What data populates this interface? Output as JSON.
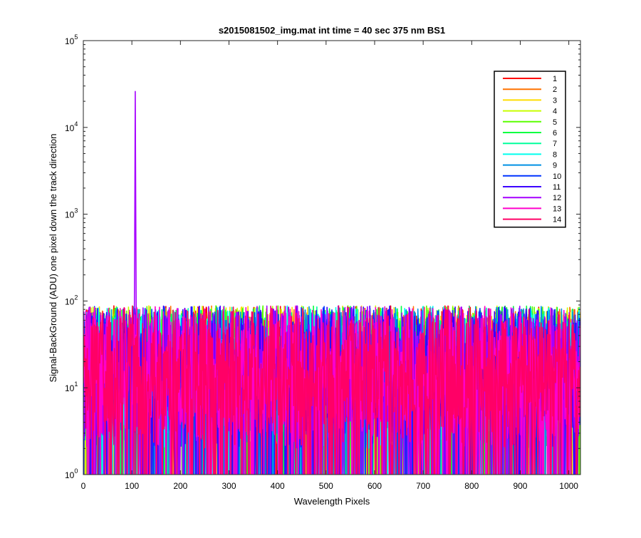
{
  "chart_data": {
    "type": "line",
    "title": "s2015081502_img.mat int time = 40 sec  375 nm BS1",
    "xlabel": "Wavelength Pixels",
    "ylabel": "Signal-BackGround (ADU) one pixel down the track direction",
    "xlim": [
      0,
      1024
    ],
    "ylim": [
      1,
      100000
    ],
    "yscale": "log",
    "xticks": [
      "0",
      "100",
      "200",
      "300",
      "400",
      "500",
      "600",
      "700",
      "800",
      "900",
      "1000"
    ],
    "yticks": [
      {
        "base": "10",
        "exp": "0"
      },
      {
        "base": "10",
        "exp": "1"
      },
      {
        "base": "10",
        "exp": "2"
      },
      {
        "base": "10",
        "exp": "3"
      },
      {
        "base": "10",
        "exp": "4"
      },
      {
        "base": "10",
        "exp": "5"
      }
    ],
    "grid": false,
    "legend_position": "top-right",
    "series": [
      {
        "name": "1",
        "color": "#ff0000"
      },
      {
        "name": "2",
        "color": "#ff7300"
      },
      {
        "name": "3",
        "color": "#ffdd00"
      },
      {
        "name": "4",
        "color": "#c8ff00"
      },
      {
        "name": "5",
        "color": "#5aff00"
      },
      {
        "name": "6",
        "color": "#00ff40"
      },
      {
        "name": "7",
        "color": "#00ff9c"
      },
      {
        "name": "8",
        "color": "#00ffee"
      },
      {
        "name": "9",
        "color": "#0091e4"
      },
      {
        "name": "10",
        "color": "#0033ff"
      },
      {
        "name": "11",
        "color": "#3c00ff"
      },
      {
        "name": "12",
        "color": "#a600ff"
      },
      {
        "name": "13",
        "color": "#ff00cc"
      },
      {
        "name": "14",
        "color": "#ff0066"
      }
    ],
    "description_values": {
      "noise_range": [
        1,
        110
      ],
      "peak": {
        "series": "12",
        "x": 107,
        "y": 26000
      }
    }
  }
}
